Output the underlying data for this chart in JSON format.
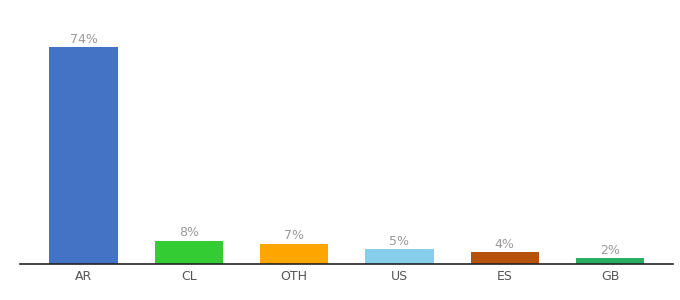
{
  "categories": [
    "AR",
    "CL",
    "OTH",
    "US",
    "ES",
    "GB"
  ],
  "values": [
    74,
    8,
    7,
    5,
    4,
    2
  ],
  "labels": [
    "74%",
    "8%",
    "7%",
    "5%",
    "4%",
    "2%"
  ],
  "bar_colors": [
    "#4472C4",
    "#33cc33",
    "#FFA500",
    "#87CEEB",
    "#b5510a",
    "#27ae60"
  ],
  "ylim": [
    0,
    82
  ],
  "background_color": "#ffffff",
  "label_color": "#999999",
  "label_fontsize": 9,
  "tick_fontsize": 9,
  "tick_color": "#555555"
}
